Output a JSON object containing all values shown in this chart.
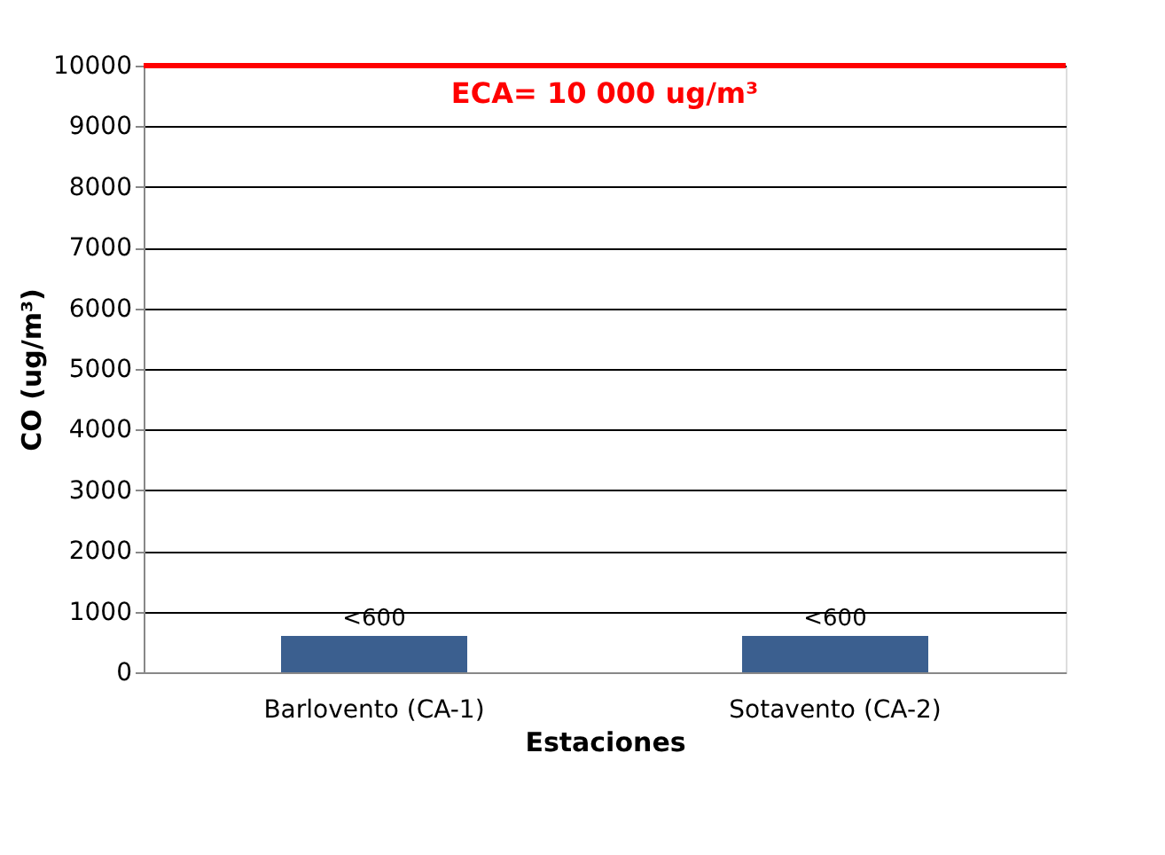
{
  "chart_data": {
    "type": "bar",
    "xlabel": "Estaciones",
    "ylabel": "CO (ug/m³)",
    "categories": [
      "Barlovento (CA-1)",
      "Sotavento (CA-2)"
    ],
    "values": [
      600,
      600
    ],
    "value_labels": [
      "<600",
      "<600"
    ],
    "color": "#3b5f8f",
    "ylim": [
      0,
      10000
    ],
    "yticks": [
      0,
      1000,
      2000,
      3000,
      4000,
      5000,
      6000,
      7000,
      8000,
      9000,
      10000
    ],
    "grid": "y",
    "ref_lines": [
      {
        "axis": "y",
        "value": 10000,
        "label": "ECA= 10 000 ug/m³",
        "color": "#ff0000"
      }
    ]
  }
}
